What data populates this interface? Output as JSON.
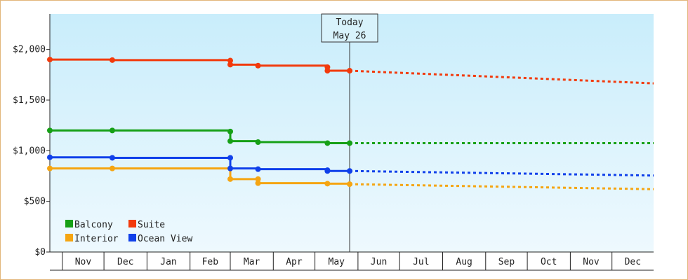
{
  "chart_data": {
    "type": "line",
    "title": "",
    "xlabel": "",
    "ylabel": "",
    "ylim": [
      0,
      2350
    ],
    "yticks": [
      0,
      500,
      1000,
      1500,
      2000
    ],
    "ytick_labels": [
      "$0",
      "$500",
      "$1,000",
      "$1,500",
      "$2,000"
    ],
    "x_axis_start": "2019-10-23",
    "x_axis_end": "2020-12-31",
    "month_ticks": [
      "Nov",
      "Dec",
      "Jan",
      "Feb",
      "Mar",
      "Apr",
      "May",
      "Jun",
      "Jul",
      "Aug",
      "Sep",
      "Oct",
      "Nov",
      "Dec"
    ],
    "month_starts": [
      "2019-11-01",
      "2019-12-01",
      "2020-01-01",
      "2020-02-01",
      "2020-03-01",
      "2020-04-01",
      "2020-05-01",
      "2020-06-01",
      "2020-07-01",
      "2020-08-01",
      "2020-09-01",
      "2020-10-01",
      "2020-11-01",
      "2020-12-01"
    ],
    "today": {
      "label_line1": "Today",
      "label_line2": "May 26",
      "date": "2020-05-26"
    },
    "legend": {
      "position": "bottom-left"
    },
    "series": [
      {
        "name": "Balcony",
        "color": "#16a016",
        "points": [
          {
            "date": "2019-10-23",
            "value": 1200
          },
          {
            "date": "2019-12-07",
            "value": 1200
          },
          {
            "date": "2020-03-01",
            "value": 1190
          },
          {
            "date": "2020-03-01",
            "value": 1095
          },
          {
            "date": "2020-03-21",
            "value": 1085
          },
          {
            "date": "2020-05-10",
            "value": 1075
          },
          {
            "date": "2020-05-26",
            "value": 1075
          }
        ],
        "forecast": [
          {
            "date": "2020-05-26",
            "value": 1075
          },
          {
            "date": "2020-12-31",
            "value": 1075
          }
        ]
      },
      {
        "name": "Suite",
        "color": "#f23a0c",
        "points": [
          {
            "date": "2019-10-23",
            "value": 1900
          },
          {
            "date": "2019-12-07",
            "value": 1895
          },
          {
            "date": "2020-03-01",
            "value": 1890
          },
          {
            "date": "2020-03-01",
            "value": 1850
          },
          {
            "date": "2020-03-21",
            "value": 1840
          },
          {
            "date": "2020-05-10",
            "value": 1825
          },
          {
            "date": "2020-05-10",
            "value": 1790
          },
          {
            "date": "2020-05-26",
            "value": 1790
          }
        ],
        "forecast": [
          {
            "date": "2020-05-26",
            "value": 1790
          },
          {
            "date": "2020-12-31",
            "value": 1665
          }
        ]
      },
      {
        "name": "Interior",
        "color": "#f5a512",
        "points": [
          {
            "date": "2019-10-23",
            "value": 825
          },
          {
            "date": "2019-12-07",
            "value": 825
          },
          {
            "date": "2020-03-01",
            "value": 825
          },
          {
            "date": "2020-03-01",
            "value": 720
          },
          {
            "date": "2020-03-21",
            "value": 720
          },
          {
            "date": "2020-03-21",
            "value": 680
          },
          {
            "date": "2020-05-10",
            "value": 675
          },
          {
            "date": "2020-05-26",
            "value": 670
          }
        ],
        "forecast": [
          {
            "date": "2020-05-26",
            "value": 670
          },
          {
            "date": "2020-12-31",
            "value": 620
          }
        ]
      },
      {
        "name": "Ocean View",
        "color": "#1040ea",
        "points": [
          {
            "date": "2019-10-23",
            "value": 935
          },
          {
            "date": "2019-12-07",
            "value": 930
          },
          {
            "date": "2020-03-01",
            "value": 930
          },
          {
            "date": "2020-03-01",
            "value": 825
          },
          {
            "date": "2020-03-21",
            "value": 818
          },
          {
            "date": "2020-05-10",
            "value": 808
          },
          {
            "date": "2020-05-10",
            "value": 800
          },
          {
            "date": "2020-05-26",
            "value": 800
          }
        ],
        "forecast": [
          {
            "date": "2020-05-26",
            "value": 800
          },
          {
            "date": "2020-12-31",
            "value": 755
          }
        ]
      }
    ]
  }
}
